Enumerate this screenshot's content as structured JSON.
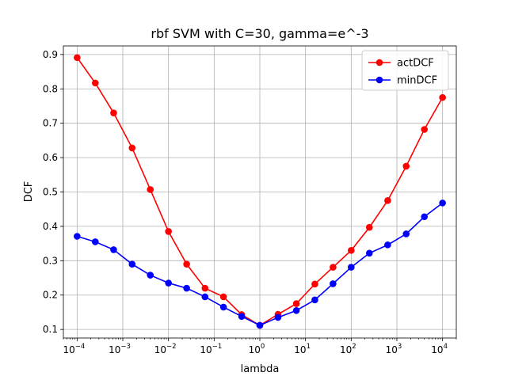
{
  "chart_data": {
    "type": "line",
    "title": "rbf SVM with C=30, gamma=e^-3",
    "xlabel": "lambda",
    "ylabel": "DCF",
    "xscale": "log",
    "xlim": [
      5e-05,
      20000
    ],
    "ylim": [
      0.075,
      0.925
    ],
    "grid": true,
    "legend_position": "top-right",
    "x_ticks": [
      {
        "value": 0.0001,
        "base": "10",
        "exp": "−4"
      },
      {
        "value": 0.001,
        "base": "10",
        "exp": "−3"
      },
      {
        "value": 0.01,
        "base": "10",
        "exp": "−2"
      },
      {
        "value": 0.1,
        "base": "10",
        "exp": "−1"
      },
      {
        "value": 1,
        "base": "10",
        "exp": "0"
      },
      {
        "value": 10,
        "base": "10",
        "exp": "1"
      },
      {
        "value": 100,
        "base": "10",
        "exp": "2"
      },
      {
        "value": 1000,
        "base": "10",
        "exp": "3"
      },
      {
        "value": 10000,
        "base": "10",
        "exp": "4"
      }
    ],
    "y_ticks": [
      {
        "value": 0.1,
        "label": "0.1"
      },
      {
        "value": 0.2,
        "label": "0.2"
      },
      {
        "value": 0.3,
        "label": "0.3"
      },
      {
        "value": 0.4,
        "label": "0.4"
      },
      {
        "value": 0.5,
        "label": "0.5"
      },
      {
        "value": 0.6,
        "label": "0.6"
      },
      {
        "value": 0.7,
        "label": "0.7"
      },
      {
        "value": 0.8,
        "label": "0.8"
      },
      {
        "value": 0.9,
        "label": "0.9"
      }
    ],
    "x": [
      0.0001,
      0.00025,
      0.00063,
      0.0016,
      0.004,
      0.01,
      0.025,
      0.063,
      0.16,
      0.4,
      1,
      2.5,
      6.3,
      16,
      40,
      100,
      250,
      630,
      1600,
      4000,
      10000
    ],
    "series": [
      {
        "name": "actDCF",
        "color": "#ff0000",
        "values": [
          0.891,
          0.817,
          0.73,
          0.628,
          0.507,
          0.385,
          0.29,
          0.22,
          0.195,
          0.143,
          0.112,
          0.144,
          0.175,
          0.232,
          0.281,
          0.33,
          0.397,
          0.475,
          0.575,
          0.682,
          0.775
        ]
      },
      {
        "name": "minDCF",
        "color": "#0000ff",
        "values": [
          0.371,
          0.355,
          0.332,
          0.29,
          0.258,
          0.235,
          0.22,
          0.195,
          0.165,
          0.138,
          0.112,
          0.135,
          0.155,
          0.186,
          0.233,
          0.281,
          0.322,
          0.346,
          0.378,
          0.428,
          0.468
        ]
      }
    ]
  }
}
